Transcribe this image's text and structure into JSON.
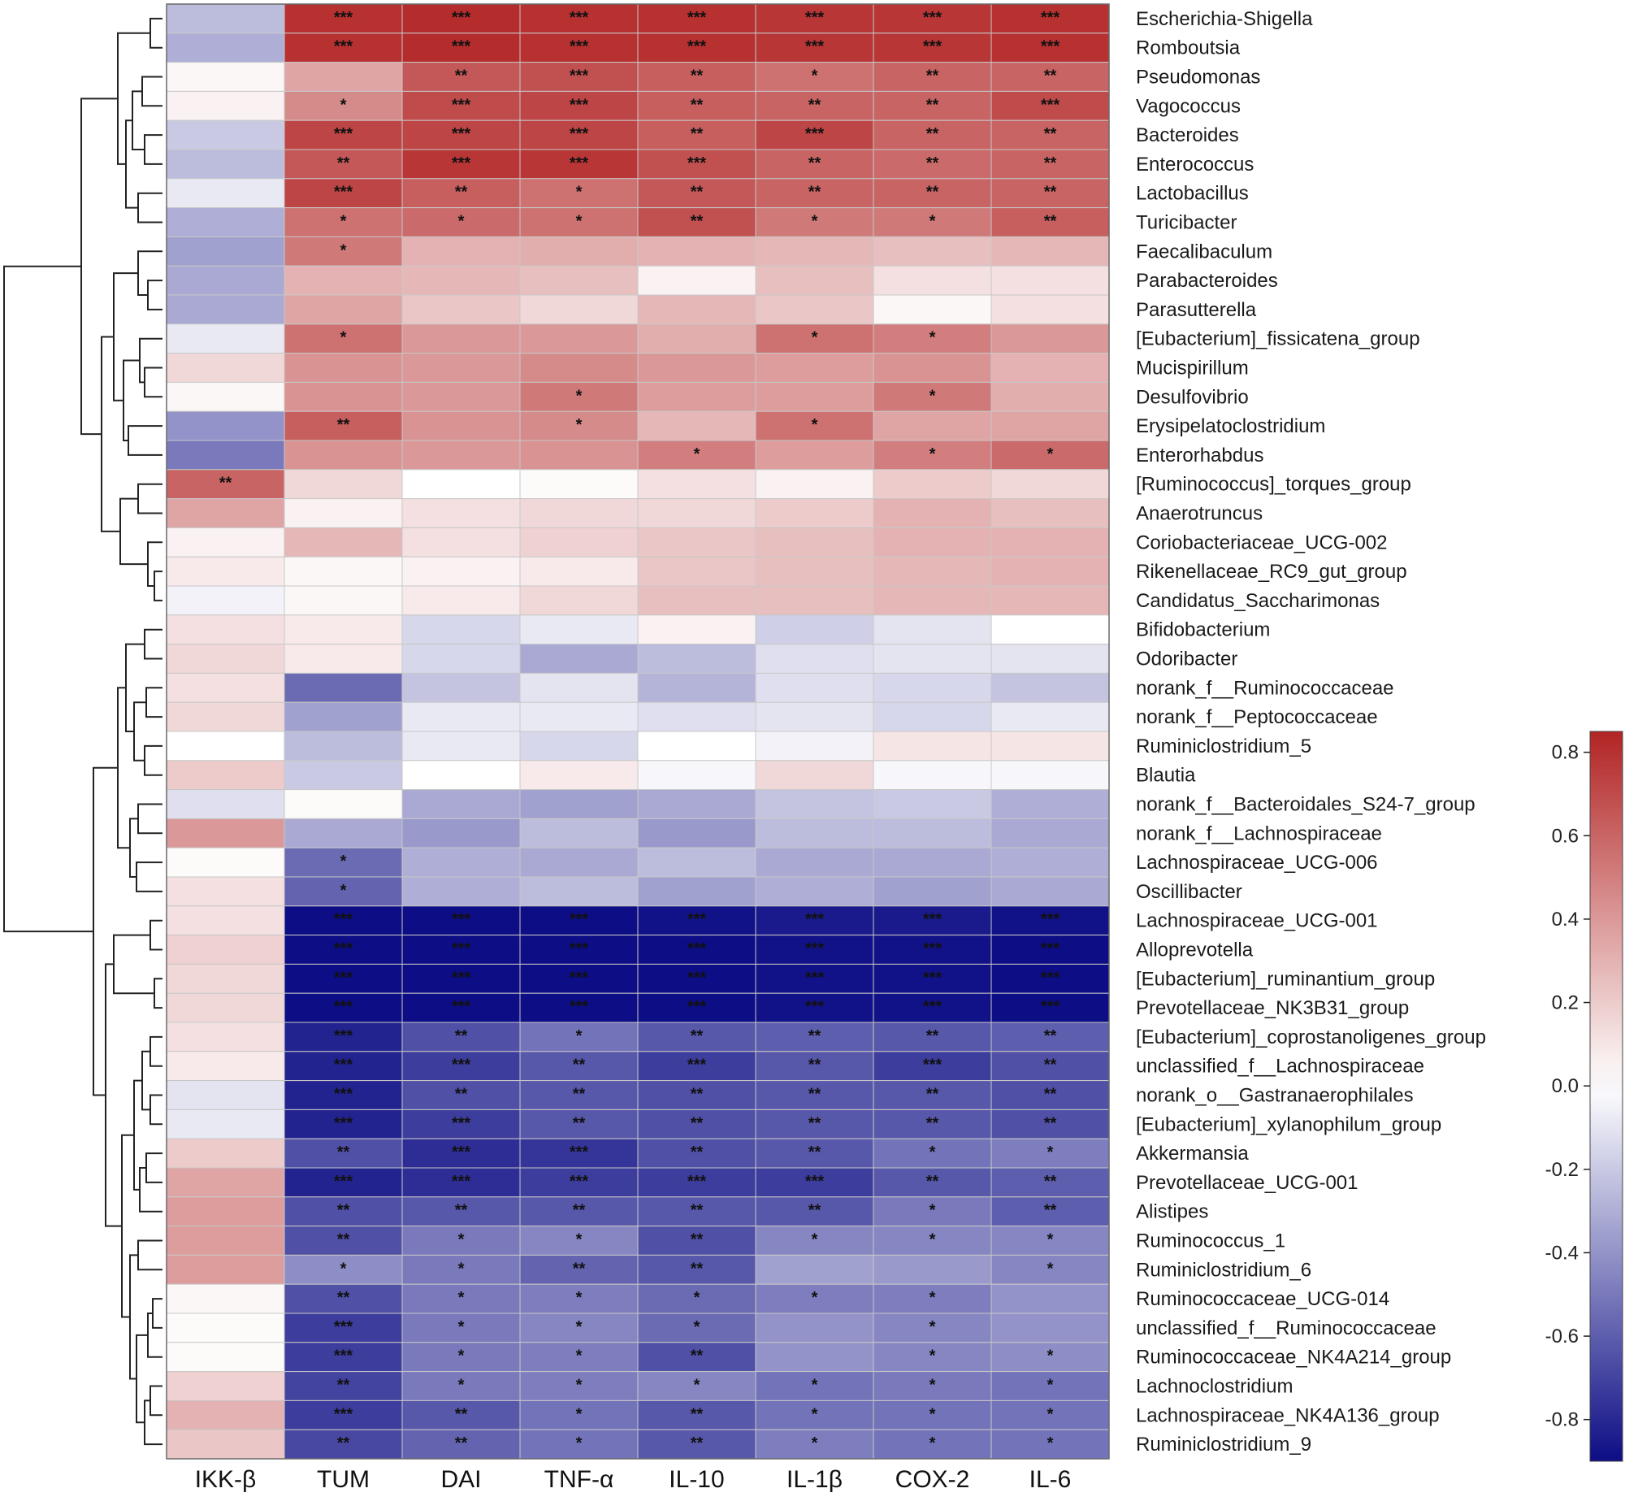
{
  "chart_data": {
    "type": "heatmap",
    "title": "",
    "columns": [
      "IKK-β",
      "TUM",
      "DAI",
      "TNF-α",
      "IL-10",
      "IL-1β",
      "COX-2",
      "IL-6"
    ],
    "rows": [
      "Escherichia-Shigella",
      "Romboutsia",
      "Pseudomonas",
      "Vagococcus",
      "Bacteroides",
      "Enterococcus",
      "Lactobacillus",
      "Turicibacter",
      "Faecalibaculum",
      "Parabacteroides",
      "Parasutterella",
      "[Eubacterium]_fissicatena_group",
      "Mucispirillum",
      "Desulfovibrio",
      "Erysipelatoclostridium",
      "Enterorhabdus",
      "[Ruminococcus]_torques_group",
      "Anaerotruncus",
      "Coriobacteriaceae_UCG-002",
      "Rikenellaceae_RC9_gut_group",
      "Candidatus_Saccharimonas",
      "Bifidobacterium",
      "Odoribacter",
      "norank_f__Ruminococcaceae",
      "norank_f__Peptococcaceae",
      "Ruminiclostridium_5",
      "Blautia",
      "norank_f__Bacteroidales_S24-7_group",
      "norank_f__Lachnospiraceae",
      "Lachnospiraceae_UCG-006",
      "Oscillibacter",
      "Lachnospiraceae_UCG-001",
      "Alloprevotella",
      "[Eubacterium]_ruminantium_group",
      "Prevotellaceae_NK3B31_group",
      "[Eubacterium]_coprostanoligenes_group",
      "unclassified_f__Lachnospiraceae",
      "norank_o__Gastranaerophilales",
      "[Eubacterium]_xylanophilum_group",
      "Akkermansia",
      "Prevotellaceae_UCG-001",
      "Alistipes",
      "Ruminococcus_1",
      "Ruminiclostridium_6",
      "Ruminococcaceae_UCG-014",
      "unclassified_f__Ruminococcaceae",
      "Ruminococcaceae_NK4A214_group",
      "Lachnoclostridium",
      "Lachnospiraceae_NK4A136_group",
      "Ruminiclostridium_9"
    ],
    "values": [
      [
        -0.25,
        0.8,
        0.82,
        0.8,
        0.8,
        0.78,
        0.78,
        0.8
      ],
      [
        -0.3,
        0.8,
        0.82,
        0.8,
        0.8,
        0.78,
        0.78,
        0.8
      ],
      [
        0.03,
        0.35,
        0.65,
        0.68,
        0.62,
        0.55,
        0.6,
        0.6
      ],
      [
        0.05,
        0.45,
        0.7,
        0.72,
        0.62,
        0.6,
        0.6,
        0.7
      ],
      [
        -0.2,
        0.72,
        0.72,
        0.72,
        0.62,
        0.72,
        0.6,
        0.6
      ],
      [
        -0.25,
        0.65,
        0.78,
        0.78,
        0.68,
        0.6,
        0.58,
        0.6
      ],
      [
        -0.08,
        0.72,
        0.62,
        0.55,
        0.65,
        0.6,
        0.6,
        0.6
      ],
      [
        -0.3,
        0.55,
        0.58,
        0.55,
        0.68,
        0.52,
        0.52,
        0.62
      ],
      [
        -0.35,
        0.52,
        0.3,
        0.32,
        0.3,
        0.28,
        0.25,
        0.28
      ],
      [
        -0.32,
        0.3,
        0.28,
        0.25,
        0.05,
        0.25,
        0.12,
        0.12
      ],
      [
        -0.32,
        0.35,
        0.22,
        0.15,
        0.28,
        0.22,
        0.03,
        0.12
      ],
      [
        -0.08,
        0.55,
        0.4,
        0.4,
        0.32,
        0.55,
        0.5,
        0.4
      ],
      [
        0.15,
        0.42,
        0.4,
        0.45,
        0.4,
        0.38,
        0.42,
        0.3
      ],
      [
        0.03,
        0.42,
        0.4,
        0.52,
        0.38,
        0.38,
        0.52,
        0.32
      ],
      [
        -0.4,
        0.62,
        0.42,
        0.45,
        0.28,
        0.55,
        0.35,
        0.35
      ],
      [
        -0.5,
        0.42,
        0.4,
        0.42,
        0.5,
        0.38,
        0.5,
        0.58
      ],
      [
        0.6,
        0.15,
        0.0,
        0.02,
        0.12,
        0.05,
        0.2,
        0.15
      ],
      [
        0.35,
        0.05,
        0.12,
        0.15,
        0.15,
        0.2,
        0.3,
        0.25
      ],
      [
        0.05,
        0.28,
        0.12,
        0.18,
        0.22,
        0.25,
        0.3,
        0.3
      ],
      [
        0.08,
        0.03,
        0.05,
        0.08,
        0.22,
        0.25,
        0.28,
        0.3
      ],
      [
        -0.05,
        0.03,
        0.08,
        0.15,
        0.25,
        0.25,
        0.28,
        0.28
      ],
      [
        0.12,
        0.08,
        -0.15,
        -0.08,
        0.05,
        -0.18,
        -0.1,
        0.0
      ],
      [
        0.15,
        0.08,
        -0.15,
        -0.32,
        -0.25,
        -0.12,
        -0.1,
        -0.1
      ],
      [
        0.12,
        -0.55,
        -0.22,
        -0.1,
        -0.28,
        -0.12,
        -0.15,
        -0.22
      ],
      [
        0.15,
        -0.35,
        -0.08,
        -0.08,
        -0.12,
        -0.1,
        -0.15,
        -0.08
      ],
      [
        0.0,
        -0.25,
        -0.08,
        -0.15,
        0.0,
        -0.05,
        0.1,
        0.1
      ],
      [
        0.2,
        -0.2,
        0.0,
        0.08,
        -0.03,
        0.15,
        -0.03,
        -0.03
      ],
      [
        -0.12,
        0.02,
        -0.32,
        -0.35,
        -0.32,
        -0.22,
        -0.2,
        -0.3
      ],
      [
        0.4,
        -0.32,
        -0.38,
        -0.25,
        -0.38,
        -0.25,
        -0.25,
        -0.32
      ],
      [
        0.02,
        -0.55,
        -0.3,
        -0.32,
        -0.25,
        -0.32,
        -0.32,
        -0.3
      ],
      [
        0.12,
        -0.58,
        -0.3,
        -0.25,
        -0.35,
        -0.3,
        -0.35,
        -0.32
      ],
      [
        0.12,
        -0.9,
        -0.9,
        -0.9,
        -0.88,
        -0.85,
        -0.85,
        -0.88
      ],
      [
        0.18,
        -0.95,
        -0.92,
        -0.92,
        -0.9,
        -0.88,
        -0.88,
        -0.9
      ],
      [
        0.15,
        -0.95,
        -0.92,
        -0.92,
        -0.9,
        -0.88,
        -0.88,
        -0.9
      ],
      [
        0.15,
        -0.95,
        -0.92,
        -0.92,
        -0.9,
        -0.88,
        -0.88,
        -0.9
      ],
      [
        0.12,
        -0.82,
        -0.65,
        -0.52,
        -0.62,
        -0.6,
        -0.62,
        -0.6
      ],
      [
        0.08,
        -0.82,
        -0.72,
        -0.62,
        -0.72,
        -0.62,
        -0.72,
        -0.65
      ],
      [
        -0.1,
        -0.82,
        -0.65,
        -0.62,
        -0.65,
        -0.62,
        -0.62,
        -0.65
      ],
      [
        -0.08,
        -0.82,
        -0.72,
        -0.62,
        -0.65,
        -0.62,
        -0.62,
        -0.65
      ],
      [
        0.2,
        -0.65,
        -0.78,
        -0.75,
        -0.65,
        -0.62,
        -0.52,
        -0.48
      ],
      [
        0.35,
        -0.82,
        -0.78,
        -0.72,
        -0.72,
        -0.72,
        -0.62,
        -0.6
      ],
      [
        0.38,
        -0.65,
        -0.62,
        -0.62,
        -0.62,
        -0.62,
        -0.5,
        -0.6
      ],
      [
        0.38,
        -0.65,
        -0.5,
        -0.45,
        -0.65,
        -0.45,
        -0.45,
        -0.45
      ],
      [
        0.38,
        -0.42,
        -0.5,
        -0.58,
        -0.62,
        -0.35,
        -0.38,
        -0.45
      ],
      [
        0.03,
        -0.65,
        -0.5,
        -0.48,
        -0.55,
        -0.48,
        -0.48,
        -0.4
      ],
      [
        0.02,
        -0.72,
        -0.5,
        -0.45,
        -0.55,
        -0.4,
        -0.45,
        -0.4
      ],
      [
        0.02,
        -0.72,
        -0.5,
        -0.48,
        -0.65,
        -0.4,
        -0.45,
        -0.42
      ],
      [
        0.18,
        -0.7,
        -0.5,
        -0.48,
        -0.45,
        -0.52,
        -0.5,
        -0.52
      ],
      [
        0.3,
        -0.72,
        -0.62,
        -0.52,
        -0.62,
        -0.52,
        -0.52,
        -0.52
      ],
      [
        0.22,
        -0.68,
        -0.58,
        -0.52,
        -0.62,
        -0.48,
        -0.52,
        -0.52
      ]
    ],
    "significance": [
      [
        "",
        "***",
        "***",
        "***",
        "***",
        "***",
        "***",
        "***"
      ],
      [
        "",
        "***",
        "***",
        "***",
        "***",
        "***",
        "***",
        "***"
      ],
      [
        "",
        "",
        "**",
        "***",
        "**",
        "*",
        "**",
        "**"
      ],
      [
        "",
        "*",
        "***",
        "***",
        "**",
        "**",
        "**",
        "***"
      ],
      [
        "",
        "***",
        "***",
        "***",
        "**",
        "***",
        "**",
        "**"
      ],
      [
        "",
        "**",
        "***",
        "***",
        "***",
        "**",
        "**",
        "**"
      ],
      [
        "",
        "***",
        "**",
        "*",
        "**",
        "**",
        "**",
        "**"
      ],
      [
        "",
        "*",
        "*",
        "*",
        "**",
        "*",
        "*",
        "**"
      ],
      [
        "",
        "*",
        "",
        "",
        "",
        "",
        "",
        ""
      ],
      [
        "",
        "",
        "",
        "",
        "",
        "",
        "",
        ""
      ],
      [
        "",
        "",
        "",
        "",
        "",
        "",
        "",
        ""
      ],
      [
        "",
        "*",
        "",
        "",
        "",
        "*",
        "*",
        ""
      ],
      [
        "",
        "",
        "",
        "",
        "",
        "",
        "",
        ""
      ],
      [
        "",
        "",
        "",
        "*",
        "",
        "",
        "*",
        ""
      ],
      [
        "",
        "**",
        "",
        "*",
        "",
        "*",
        "",
        ""
      ],
      [
        "",
        "",
        "",
        "",
        "*",
        "",
        "*",
        "*"
      ],
      [
        "**",
        "",
        "",
        "",
        "",
        "",
        "",
        ""
      ],
      [
        "",
        "",
        "",
        "",
        "",
        "",
        "",
        ""
      ],
      [
        "",
        "",
        "",
        "",
        "",
        "",
        "",
        ""
      ],
      [
        "",
        "",
        "",
        "",
        "",
        "",
        "",
        ""
      ],
      [
        "",
        "",
        "",
        "",
        "",
        "",
        "",
        ""
      ],
      [
        "",
        "",
        "",
        "",
        "",
        "",
        "",
        ""
      ],
      [
        "",
        "",
        "",
        "",
        "",
        "",
        "",
        ""
      ],
      [
        "",
        "",
        "",
        "",
        "",
        "",
        "",
        ""
      ],
      [
        "",
        "",
        "",
        "",
        "",
        "",
        "",
        ""
      ],
      [
        "",
        "",
        "",
        "",
        "",
        "",
        "",
        ""
      ],
      [
        "",
        "",
        "",
        "",
        "",
        "",
        "",
        ""
      ],
      [
        "",
        "",
        "",
        "",
        "",
        "",
        "",
        ""
      ],
      [
        "",
        "",
        "",
        "",
        "",
        "",
        "",
        ""
      ],
      [
        "",
        "*",
        "",
        "",
        "",
        "",
        "",
        ""
      ],
      [
        "",
        "*",
        "",
        "",
        "",
        "",
        "",
        ""
      ],
      [
        "",
        "***",
        "***",
        "***",
        "***",
        "***",
        "***",
        "***"
      ],
      [
        "",
        "***",
        "***",
        "***",
        "***",
        "***",
        "***",
        "***"
      ],
      [
        "",
        "***",
        "***",
        "***",
        "***",
        "***",
        "***",
        "***"
      ],
      [
        "",
        "***",
        "***",
        "***",
        "***",
        "***",
        "***",
        "***"
      ],
      [
        "",
        "***",
        "**",
        "*",
        "**",
        "**",
        "**",
        "**"
      ],
      [
        "",
        "***",
        "***",
        "**",
        "***",
        "**",
        "***",
        "**"
      ],
      [
        "",
        "***",
        "**",
        "**",
        "**",
        "**",
        "**",
        "**"
      ],
      [
        "",
        "***",
        "***",
        "**",
        "**",
        "**",
        "**",
        "**"
      ],
      [
        "",
        "**",
        "***",
        "***",
        "**",
        "**",
        "*",
        "*"
      ],
      [
        "",
        "***",
        "***",
        "***",
        "***",
        "***",
        "**",
        "**"
      ],
      [
        "",
        "**",
        "**",
        "**",
        "**",
        "**",
        "*",
        "**"
      ],
      [
        "",
        "**",
        "*",
        "*",
        "**",
        "*",
        "*",
        "*"
      ],
      [
        "",
        "*",
        "*",
        "**",
        "**",
        "",
        "",
        "*"
      ],
      [
        "",
        "**",
        "*",
        "*",
        "*",
        "*",
        "*",
        ""
      ],
      [
        "",
        "***",
        "*",
        "*",
        "*",
        "",
        "*",
        ""
      ],
      [
        "",
        "***",
        "*",
        "*",
        "**",
        "",
        "*",
        "*"
      ],
      [
        "",
        "**",
        "*",
        "*",
        "*",
        "*",
        "*",
        "*"
      ],
      [
        "",
        "***",
        "**",
        "*",
        "**",
        "*",
        "*",
        "*"
      ],
      [
        "",
        "**",
        "**",
        "*",
        "**",
        "*",
        "*",
        "*"
      ]
    ],
    "colorbar": {
      "range": [
        -0.9,
        0.85
      ],
      "ticks": [
        "0.8",
        "0.6",
        "0.4",
        "0.2",
        "0.0",
        "-0.2",
        "-0.4",
        "-0.6",
        "-0.8"
      ],
      "colors": {
        "low": "#0d0d85",
        "mid": "#ffffff",
        "high": "#b22424"
      }
    },
    "dendrogram": "row clustering tree (left side)"
  }
}
